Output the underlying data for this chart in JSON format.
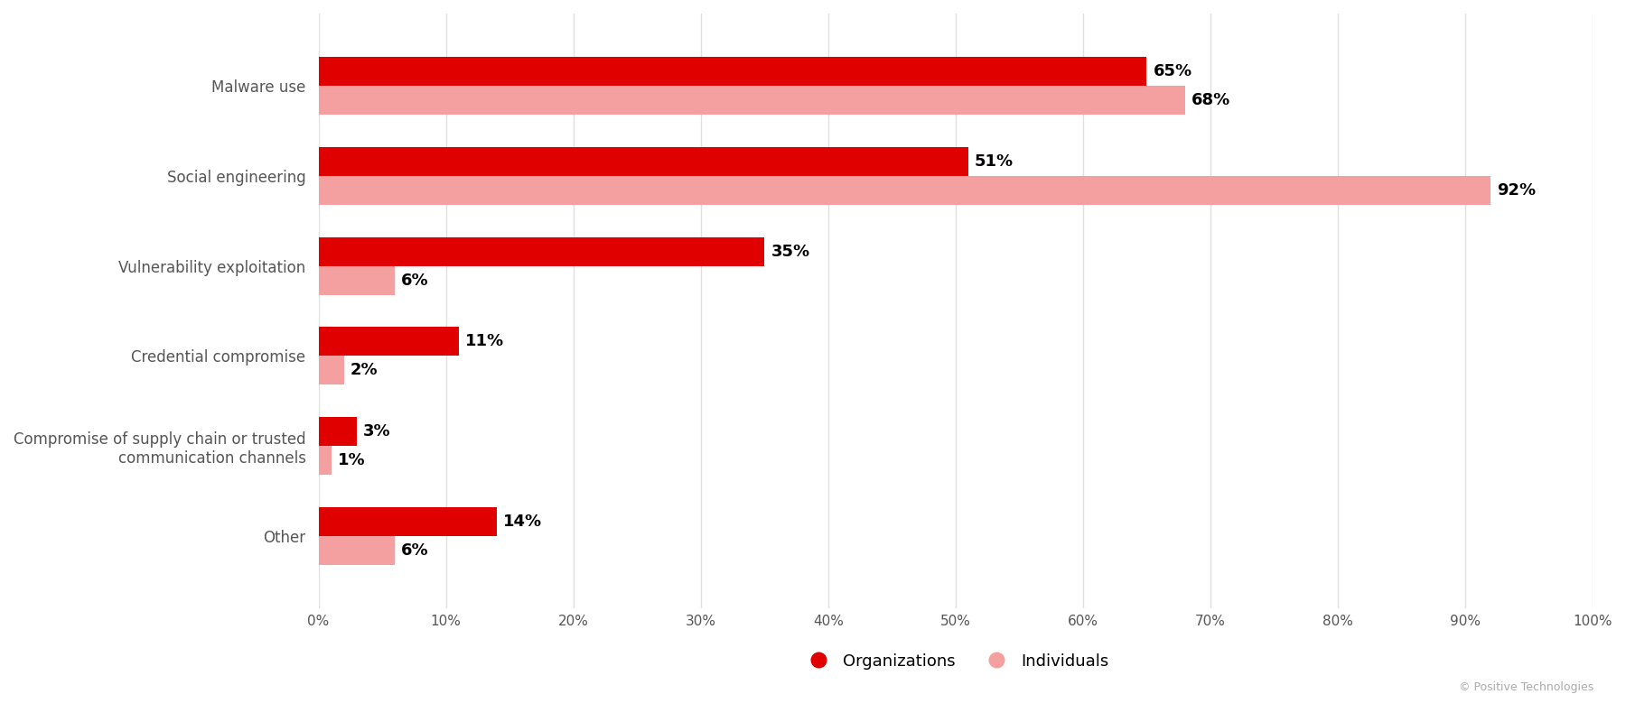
{
  "categories": [
    "Other",
    "Compromise of supply chain or trusted\ncommunication channels",
    "Credential compromise",
    "Vulnerability exploitation",
    "Social engineering",
    "Malware use"
  ],
  "organizations": [
    14,
    3,
    11,
    35,
    51,
    65
  ],
  "individuals": [
    6,
    1,
    2,
    6,
    92,
    68
  ],
  "org_color": "#e00000",
  "ind_color": "#f5a0a0",
  "bar_height": 0.32,
  "xlim": [
    0,
    100
  ],
  "xticks": [
    0,
    10,
    20,
    30,
    40,
    50,
    60,
    70,
    80,
    90,
    100
  ],
  "legend_labels": [
    "Organizations",
    "Individuals"
  ],
  "watermark": "© Positive Technologies",
  "background_color": "#ffffff",
  "grid_color": "#e0e0e0"
}
